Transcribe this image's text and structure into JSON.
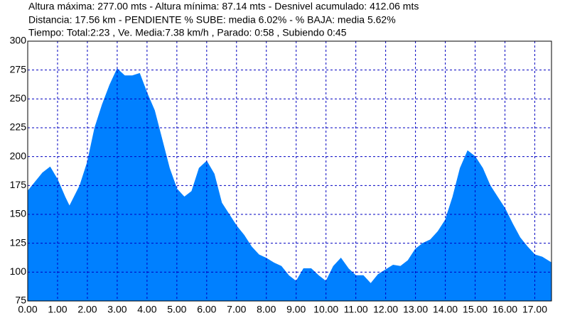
{
  "chart_data": {
    "type": "area",
    "title": "Altura máxima: 277.00 mts - Altura mínima: 87.14 mts - Desnivel acumulado: 412.06 mts",
    "subtitle": "Distancia: 17.56 km - PENDIENTE  % SUBE: media 6.02% - % BAJA: media 5.62%",
    "annotation": "Tiempo: Total:2:23 ,  Ve. Media:7.38 km/h , Parado: 0:58 , Subiendo 0:45",
    "color": "#0080ff",
    "grid": true,
    "xlim": [
      0,
      17.56
    ],
    "ylim": [
      75,
      300
    ],
    "xticks": [
      {
        "value": 0,
        "label": "0.00"
      },
      {
        "value": 1,
        "label": "1.00"
      },
      {
        "value": 2,
        "label": "2.00"
      },
      {
        "value": 3,
        "label": "3.00"
      },
      {
        "value": 4,
        "label": "4.00"
      },
      {
        "value": 5,
        "label": "5.00"
      },
      {
        "value": 6,
        "label": "6.00"
      },
      {
        "value": 7,
        "label": "7.00"
      },
      {
        "value": 8,
        "label": "8.00"
      },
      {
        "value": 9,
        "label": "9.00"
      },
      {
        "value": 10,
        "label": "10.00"
      },
      {
        "value": 11,
        "label": "11.00"
      },
      {
        "value": 12,
        "label": "12.00"
      },
      {
        "value": 13,
        "label": "13.00"
      },
      {
        "value": 14,
        "label": "14.00"
      },
      {
        "value": 15,
        "label": "15.00"
      },
      {
        "value": 16,
        "label": "16.00"
      },
      {
        "value": 17,
        "label": "17.00"
      }
    ],
    "yticks": [
      75,
      100,
      125,
      150,
      175,
      200,
      225,
      250,
      275,
      300
    ],
    "x": [
      0,
      0.25,
      0.5,
      0.75,
      1,
      1.25,
      1.4,
      1.75,
      2,
      2.25,
      2.5,
      2.75,
      3,
      3.25,
      3.5,
      3.75,
      4,
      4.25,
      4.5,
      4.75,
      5,
      5.25,
      5.5,
      5.75,
      6,
      6.25,
      6.5,
      6.75,
      7,
      7.25,
      7.5,
      7.75,
      8,
      8.25,
      8.5,
      8.75,
      9,
      9.25,
      9.5,
      9.75,
      10,
      10.25,
      10.5,
      10.75,
      11,
      11.25,
      11.5,
      11.75,
      12,
      12.25,
      12.5,
      12.75,
      13,
      13.25,
      13.5,
      13.75,
      14,
      14.25,
      14.5,
      14.75,
      15,
      15.25,
      15.5,
      15.75,
      16,
      16.25,
      16.5,
      16.75,
      17,
      17.25,
      17.56
    ],
    "values": [
      170,
      178,
      186,
      191,
      180,
      165,
      157,
      175,
      195,
      225,
      245,
      262,
      276,
      270,
      270,
      272,
      255,
      240,
      215,
      190,
      172,
      165,
      170,
      190,
      196,
      185,
      160,
      150,
      140,
      132,
      122,
      115,
      112,
      108,
      105,
      97,
      92,
      103,
      103,
      97,
      92,
      105,
      112,
      103,
      97,
      97,
      90,
      98,
      102,
      106,
      105,
      110,
      120,
      125,
      128,
      135,
      145,
      165,
      190,
      205,
      200,
      190,
      175,
      165,
      155,
      142,
      130,
      122,
      115,
      113,
      108
    ]
  }
}
